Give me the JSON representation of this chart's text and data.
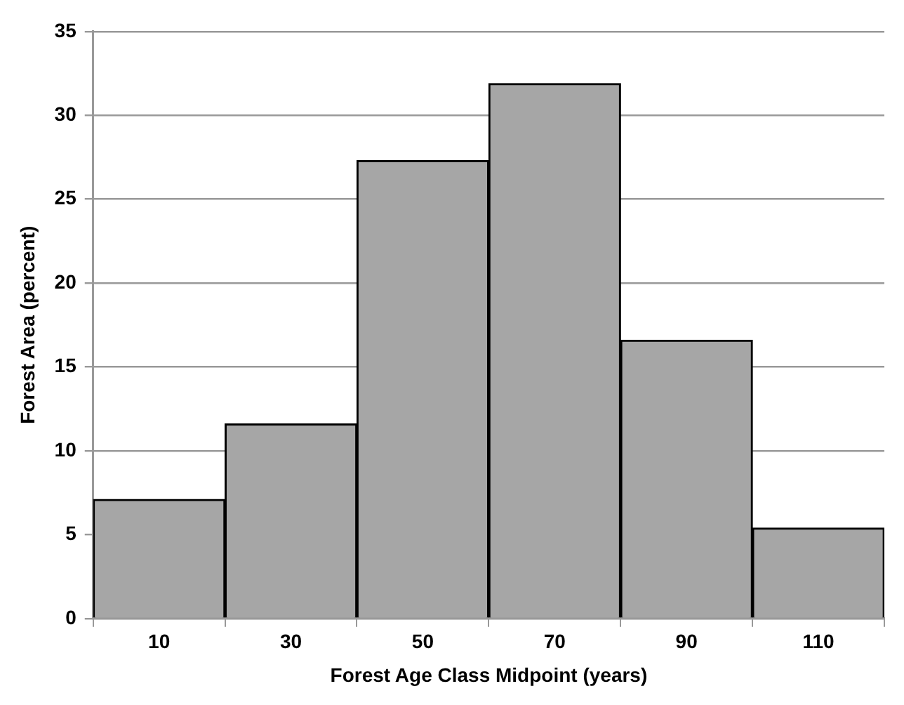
{
  "chart_data": {
    "type": "bar",
    "xlabel": "Forest Age Class Midpoint (years)",
    "ylabel": "Forest Area (percent)",
    "categories": [
      "10",
      "30",
      "50",
      "70",
      "90",
      "110"
    ],
    "series": [
      {
        "color": "#a6a6a6",
        "values": [
          7.1,
          11.6,
          27.3,
          31.9,
          16.6,
          5.4
        ]
      }
    ],
    "ylim": [
      0,
      35
    ],
    "yticks": [
      0,
      5,
      10,
      15,
      20,
      25,
      30,
      35
    ],
    "grid": "y",
    "legend": false
  }
}
